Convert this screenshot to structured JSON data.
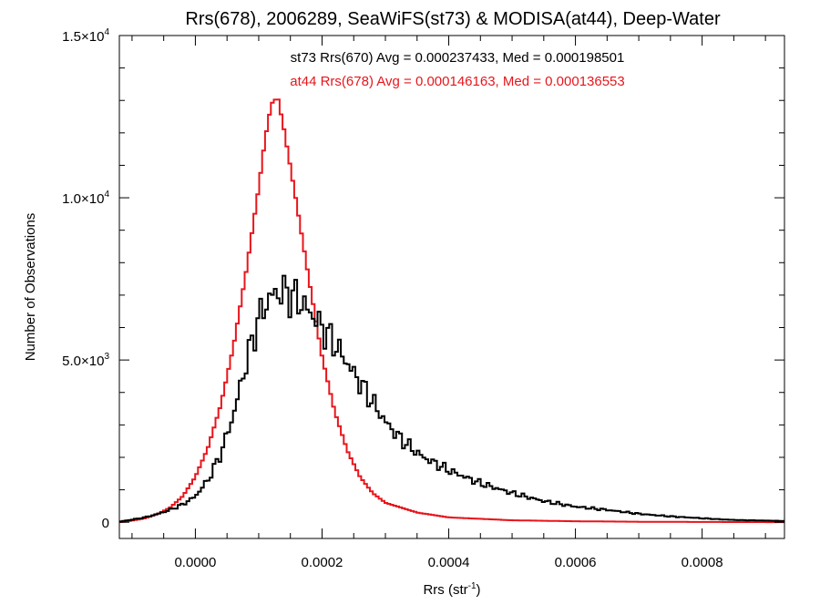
{
  "chart_data": {
    "type": "step-histogram",
    "title": "Rrs(678), 2006289, SeaWiFS(st73) & MODISA(at44), Deep-Water",
    "xlabel": "Rrs (str",
    "xlabel_sup": "-1",
    "xlabel_close": ")",
    "ylabel": "Number of Observations",
    "xlim": [
      -0.00012,
      0.00093
    ],
    "ylim": [
      -500,
      15000
    ],
    "x_ticks": [
      {
        "value": 0.0,
        "label": "0.0000"
      },
      {
        "value": 0.0002,
        "label": "0.0002"
      },
      {
        "value": 0.0004,
        "label": "0.0004"
      },
      {
        "value": 0.0006,
        "label": "0.0006"
      },
      {
        "value": 0.0008,
        "label": "0.0008"
      }
    ],
    "y_ticks": [
      {
        "value": 0,
        "mant": "0",
        "exp": ""
      },
      {
        "value": 5000,
        "mant": "5.0×10",
        "exp": "3"
      },
      {
        "value": 10000,
        "mant": "1.0×10",
        "exp": "4"
      },
      {
        "value": 15000,
        "mant": "1.5×10",
        "exp": "4"
      }
    ],
    "stats": [
      {
        "text": "st73 Rrs(670) Avg = 0.000237433, Med = 0.000198501",
        "color": "#000000"
      },
      {
        "text": "at44 Rrs(678) Avg = 0.000146163, Med = 0.000136553",
        "color": "#e8151b"
      }
    ],
    "series": [
      {
        "color": "#e8151b",
        "x": [
          -0.00012,
          -0.0001,
          -8e-05,
          -6e-05,
          -4e-05,
          -2e-05,
          0.0,
          2e-05,
          4e-05,
          6e-05,
          8e-05,
          0.0001,
          0.00011,
          0.00012,
          0.00013,
          0.00014,
          0.00016,
          0.00018,
          0.0002,
          0.00022,
          0.00024,
          0.00026,
          0.00028,
          0.0003,
          0.00035,
          0.0004,
          0.0005,
          0.0006,
          0.0007,
          0.0008,
          0.00093
        ],
        "y": [
          0,
          50,
          120,
          250,
          450,
          800,
          1400,
          2300,
          3600,
          5400,
          7700,
          10300,
          11800,
          12900,
          13100,
          12100,
          9800,
          7400,
          5100,
          3400,
          2200,
          1400,
          900,
          600,
          300,
          150,
          60,
          30,
          15,
          8,
          3
        ]
      },
      {
        "color": "#000000",
        "x": [
          -0.00012,
          -0.0001,
          -8e-05,
          -6e-05,
          -4e-05,
          -2e-05,
          0.0,
          2e-05,
          4e-05,
          6e-05,
          8e-05,
          0.0001,
          0.00012,
          0.00014,
          0.00016,
          0.00018,
          0.0002,
          0.00022,
          0.00024,
          0.00026,
          0.00028,
          0.0003,
          0.00032,
          0.00034,
          0.00036,
          0.00038,
          0.0004,
          0.00045,
          0.0005,
          0.00055,
          0.0006,
          0.00065,
          0.0007,
          0.00075,
          0.0008,
          0.00085,
          0.00093
        ],
        "y": [
          20,
          80,
          150,
          250,
          380,
          550,
          800,
          1300,
          2100,
          3300,
          4900,
          6300,
          7000,
          7100,
          6900,
          6500,
          6000,
          5500,
          4900,
          4300,
          3700,
          3100,
          2650,
          2300,
          2000,
          1800,
          1600,
          1200,
          900,
          650,
          480,
          380,
          260,
          180,
          120,
          70,
          40
        ]
      }
    ]
  }
}
